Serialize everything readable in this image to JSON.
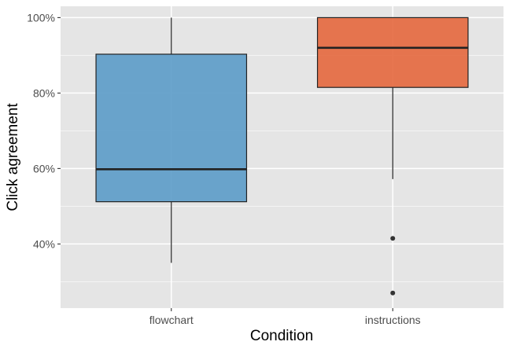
{
  "chart_data": {
    "type": "box",
    "xlabel": "Condition",
    "ylabel": "Click agreement",
    "ylim": [
      0.23,
      1.03
    ],
    "y_ticks": [
      0.4,
      0.6,
      0.8,
      1.0
    ],
    "y_tick_labels": [
      "40%",
      "60%",
      "80%",
      "100%"
    ],
    "grid": true,
    "categories": [
      "flowchart",
      "instructions"
    ],
    "boxes": [
      {
        "category": "flowchart",
        "color": "#5b9bc8",
        "whisker_low": 0.35,
        "q1": 0.512,
        "median": 0.598,
        "q3": 0.903,
        "whisker_high": 1.0,
        "outliers": []
      },
      {
        "category": "instructions",
        "color": "#e4673d",
        "whisker_low": 0.572,
        "q1": 0.815,
        "median": 0.92,
        "q3": 1.0,
        "whisker_high": 1.0,
        "outliers": [
          0.415,
          0.27
        ]
      }
    ]
  },
  "colors": {
    "panel_background": "#e5e5e5",
    "grid": "#ffffff",
    "box_stroke": "#222222"
  }
}
